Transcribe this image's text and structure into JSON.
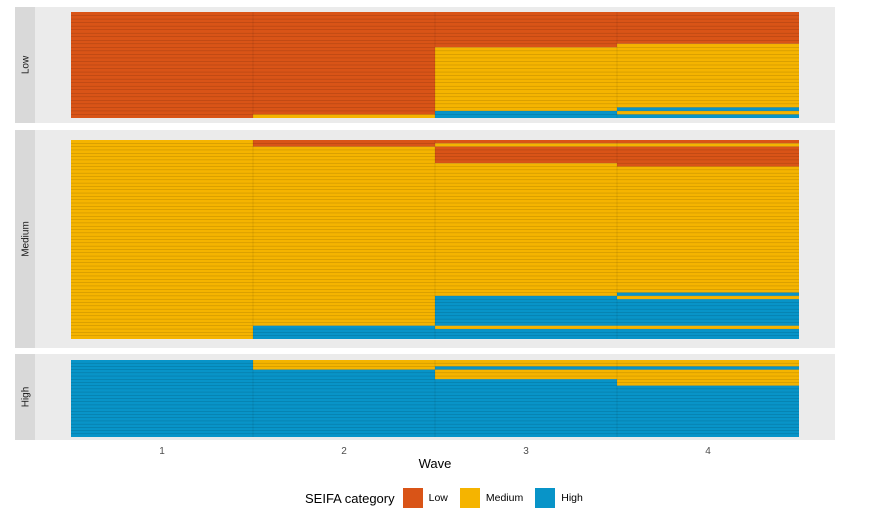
{
  "chart_data": {
    "type": "stacked-bar-facets",
    "xlabel": "Wave",
    "categories": [
      "1",
      "2",
      "3",
      "4"
    ],
    "legend": {
      "title": "SEIFA category",
      "position": "bottom",
      "entries": [
        {
          "name": "Low",
          "color": "#D95417"
        },
        {
          "name": "Medium",
          "color": "#F5B400"
        },
        {
          "name": "High",
          "color": "#0894C8"
        }
      ]
    },
    "facets": [
      {
        "label": "Low",
        "n": 30,
        "waves": [
          [
            {
              "cat": "Low",
              "n": 30
            }
          ],
          [
            {
              "cat": "Low",
              "n": 29
            },
            {
              "cat": "Medium",
              "n": 1
            }
          ],
          [
            {
              "cat": "Low",
              "n": 10
            },
            {
              "cat": "Medium",
              "n": 18
            },
            {
              "cat": "High",
              "n": 2
            }
          ],
          [
            {
              "cat": "Low",
              "n": 9
            },
            {
              "cat": "Medium",
              "n": 18
            },
            {
              "cat": "High",
              "n": 1
            },
            {
              "cat": "Medium",
              "n": 1
            },
            {
              "cat": "High",
              "n": 1
            }
          ]
        ]
      },
      {
        "label": "Medium",
        "n": 60,
        "waves": [
          [
            {
              "cat": "Medium",
              "n": 60
            }
          ],
          [
            {
              "cat": "Low",
              "n": 2
            },
            {
              "cat": "Medium",
              "n": 54
            },
            {
              "cat": "High",
              "n": 4
            }
          ],
          [
            {
              "cat": "Low",
              "n": 1
            },
            {
              "cat": "Medium",
              "n": 1
            },
            {
              "cat": "Low",
              "n": 5
            },
            {
              "cat": "Medium",
              "n": 40
            },
            {
              "cat": "High",
              "n": 9
            },
            {
              "cat": "Medium",
              "n": 1
            },
            {
              "cat": "High",
              "n": 3
            }
          ],
          [
            {
              "cat": "Low",
              "n": 1
            },
            {
              "cat": "Medium",
              "n": 1
            },
            {
              "cat": "Low",
              "n": 6
            },
            {
              "cat": "Medium",
              "n": 38
            },
            {
              "cat": "High",
              "n": 1
            },
            {
              "cat": "Medium",
              "n": 1
            },
            {
              "cat": "High",
              "n": 8
            },
            {
              "cat": "Medium",
              "n": 1
            },
            {
              "cat": "High",
              "n": 3
            }
          ]
        ]
      },
      {
        "label": "High",
        "n": 24,
        "waves": [
          [
            {
              "cat": "High",
              "n": 24
            }
          ],
          [
            {
              "cat": "Medium",
              "n": 3
            },
            {
              "cat": "High",
              "n": 21
            }
          ],
          [
            {
              "cat": "Medium",
              "n": 2
            },
            {
              "cat": "High",
              "n": 1
            },
            {
              "cat": "Medium",
              "n": 3
            },
            {
              "cat": "High",
              "n": 18
            }
          ],
          [
            {
              "cat": "Medium",
              "n": 2
            },
            {
              "cat": "High",
              "n": 1
            },
            {
              "cat": "Medium",
              "n": 5
            },
            {
              "cat": "High",
              "n": 16
            }
          ]
        ]
      }
    ]
  }
}
